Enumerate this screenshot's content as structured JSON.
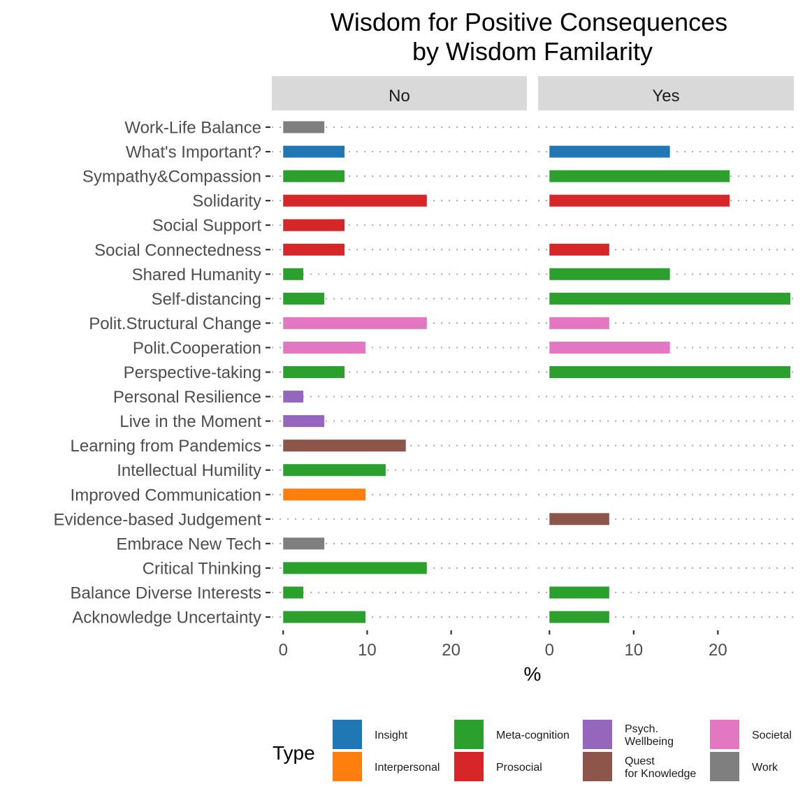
{
  "chart_data": {
    "type": "bar",
    "orientation": "horizontal",
    "title": "Wisdom for Positive Consequences\nby Wisdom Familarity",
    "xlabel": "%",
    "ylabel": "",
    "xlim": [
      0,
      29
    ],
    "xticks": [
      0,
      10,
      20
    ],
    "grid": "dotted horizontal",
    "legend_position": "bottom",
    "legend_title": "Type",
    "facets": [
      "No",
      "Yes"
    ],
    "categories": [
      "Work-Life Balance",
      "What's Important?",
      "Sympathy&Compassion",
      "Solidarity",
      "Social Support",
      "Social Connectedness",
      "Shared Humanity",
      "Self-distancing",
      "Polit.Structural Change",
      "Polit.Cooperation",
      "Perspective-taking",
      "Personal Resilience",
      "Live in the Moment",
      "Learning from Pandemics",
      "Intellectual Humility",
      "Improved Communication",
      "Evidence-based Judgement",
      "Embrace New Tech",
      "Critical Thinking",
      "Balance Diverse Interests",
      "Acknowledge Uncertainty"
    ],
    "category_types": [
      "Work",
      "Insight",
      "Meta-cognition",
      "Prosocial",
      "Prosocial",
      "Prosocial",
      "Meta-cognition",
      "Meta-cognition",
      "Societal",
      "Societal",
      "Meta-cognition",
      "Psych.\nWellbeing",
      "Psych.\nWellbeing",
      "Quest\nfor Knowledge",
      "Meta-cognition",
      "Interpersonal",
      "Quest\nfor Knowledge",
      "Work",
      "Meta-cognition",
      "Meta-cognition",
      "Meta-cognition"
    ],
    "series": [
      {
        "name": "No",
        "values": [
          4.9,
          7.3,
          7.3,
          17.1,
          7.3,
          7.3,
          2.4,
          4.9,
          17.1,
          9.8,
          7.3,
          2.4,
          4.9,
          14.6,
          12.2,
          9.8,
          0,
          4.9,
          17.1,
          2.4,
          9.8
        ]
      },
      {
        "name": "Yes",
        "values": [
          0,
          14.3,
          21.4,
          21.4,
          0,
          7.1,
          14.3,
          28.6,
          7.1,
          14.3,
          28.6,
          0,
          0,
          0,
          0,
          0,
          7.1,
          0,
          0,
          7.1,
          7.1
        ]
      }
    ],
    "legend": [
      {
        "label": "Insight",
        "color": "#1f77b4"
      },
      {
        "label": "Interpersonal",
        "color": "#ff7f0e"
      },
      {
        "label": "Meta-cognition",
        "color": "#2ca02c"
      },
      {
        "label": "Prosocial",
        "color": "#d62728"
      },
      {
        "label": "Psych.\nWellbeing",
        "color": "#9467bd"
      },
      {
        "label": "Quest\nfor Knowledge",
        "color": "#8c564b"
      },
      {
        "label": "Societal",
        "color": "#e377c2"
      },
      {
        "label": "Work",
        "color": "#7f7f7f"
      }
    ]
  }
}
